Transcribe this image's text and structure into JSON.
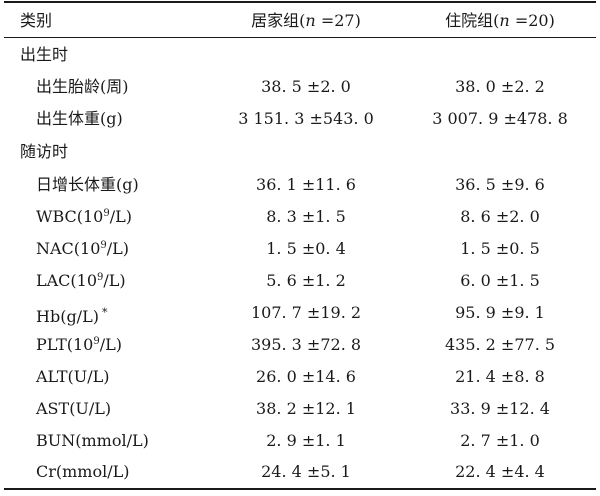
{
  "header": {
    "category": "类别",
    "home_group": "居家组(n =27)",
    "home_group_pre": "居家组(",
    "home_group_n": "n",
    "home_group_post": " =27)",
    "hosp_group_pre": "住院组(",
    "hosp_group_n": "n",
    "hosp_group_post": " =20)"
  },
  "sections": [
    {
      "title": "出生时",
      "rows": [
        {
          "label": "出生胎龄(周)",
          "home": "38. 5 ±2. 0",
          "hosp": "38. 0 ±2. 2"
        },
        {
          "label": "出生体重(g)",
          "home": "3 151. 3 ±543. 0",
          "hosp": "3 007. 9 ±478. 8"
        }
      ]
    },
    {
      "title": "随访时",
      "rows": [
        {
          "label": "日增长体重(g)",
          "home": "36. 1 ±11. 6",
          "hosp": "36. 5 ±9. 6"
        },
        {
          "label_pre": "WBC(10",
          "label_sup": "9",
          "label_post": "/L)",
          "home": "8. 3 ±1. 5",
          "hosp": "8. 6 ±2. 0"
        },
        {
          "label_pre": "NAC(10",
          "label_sup": "9",
          "label_post": "/L)",
          "home": "1. 5 ±0. 4",
          "hosp": "1. 5 ±0. 5"
        },
        {
          "label_pre": "LAC(10",
          "label_sup": "9",
          "label_post": "/L)",
          "home": "5. 6 ±1. 2",
          "hosp": "6. 0 ±1. 5"
        },
        {
          "label": "Hb(g/L)",
          "label_mark": "*",
          "home": "107. 7 ±19. 2",
          "hosp": "95. 9 ±9. 1"
        },
        {
          "label_pre": "PLT(10",
          "label_sup": "9",
          "label_post": "/L)",
          "home": "395. 3 ±72. 8",
          "hosp": "435. 2 ±77. 5"
        },
        {
          "label": "ALT(U/L)",
          "home": "26. 0 ±14. 6",
          "hosp": "21. 4 ±8. 8"
        },
        {
          "label": "AST(U/L)",
          "home": "38. 2 ±12. 1",
          "hosp": "33. 9 ±12. 4"
        },
        {
          "label": "BUN(mmol/L)",
          "home": "2. 9 ±1. 1",
          "hosp": "2. 7 ±1. 0"
        },
        {
          "label": "Cr(mmol/L)",
          "home": "24. 4 ±5. 1",
          "hosp": "22. 4 ±4. 4"
        }
      ]
    }
  ]
}
